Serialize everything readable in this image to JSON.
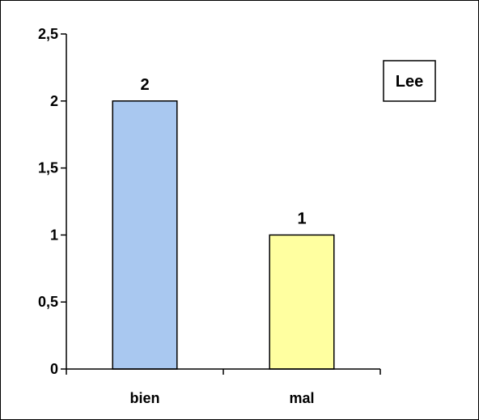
{
  "chart_data": {
    "type": "bar",
    "categories": [
      "bien",
      "mal"
    ],
    "values": [
      2,
      1
    ],
    "data_labels": [
      "2",
      "1"
    ],
    "y_ticks": [
      "0",
      "0,5",
      "1",
      "1,5",
      "2",
      "2,5"
    ],
    "ylim": [
      0,
      2.5
    ],
    "grid": false,
    "legend": {
      "text": "Lee",
      "placement": "top-right"
    },
    "bar_colors": [
      "#a9c8f0",
      "#ffffa0"
    ],
    "title": "",
    "xlabel": "",
    "ylabel": ""
  }
}
